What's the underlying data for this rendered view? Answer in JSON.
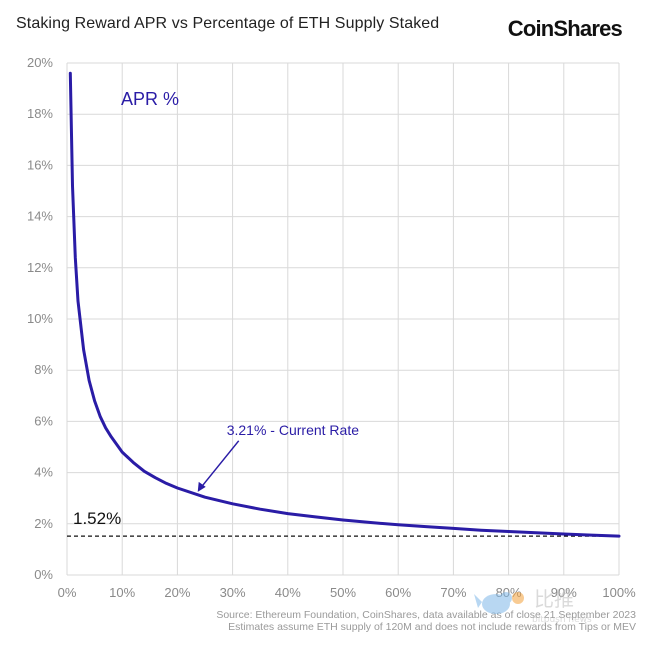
{
  "header": {
    "title": "Staking Reward APR vs Percentage of ETH Supply Staked",
    "logo_text": "CoinShares"
  },
  "chart_data": {
    "type": "line",
    "title": "Staking Reward APR vs Percentage of ETH Supply Staked",
    "xlabel": "",
    "ylabel": "",
    "xlim": [
      0,
      100
    ],
    "ylim": [
      0,
      20
    ],
    "x_ticks": [
      0,
      10,
      20,
      30,
      40,
      50,
      60,
      70,
      80,
      90,
      100
    ],
    "x_tick_labels": [
      "0%",
      "10%",
      "20%",
      "30%",
      "40%",
      "50%",
      "60%",
      "70%",
      "80%",
      "90%",
      "100%"
    ],
    "y_ticks": [
      0,
      2,
      4,
      6,
      8,
      10,
      12,
      14,
      16,
      18,
      20
    ],
    "y_tick_labels": [
      "0%",
      "2%",
      "4%",
      "6%",
      "8%",
      "10%",
      "12%",
      "14%",
      "16%",
      "18%",
      "20%"
    ],
    "grid": true,
    "series": [
      {
        "name": "APR %",
        "color": "#2a1ca6",
        "x": [
          0.6,
          1,
          1.5,
          2,
          3,
          4,
          5,
          6,
          7,
          8,
          10,
          12,
          14,
          16,
          18,
          20,
          25,
          30,
          35,
          40,
          45,
          50,
          55,
          60,
          65,
          70,
          75,
          80,
          85,
          90,
          95,
          100
        ],
        "y": [
          19.6,
          15.2,
          12.4,
          10.7,
          8.8,
          7.6,
          6.8,
          6.2,
          5.75,
          5.4,
          4.8,
          4.4,
          4.05,
          3.8,
          3.58,
          3.4,
          3.04,
          2.78,
          2.57,
          2.4,
          2.27,
          2.15,
          2.05,
          1.96,
          1.89,
          1.82,
          1.75,
          1.7,
          1.65,
          1.6,
          1.56,
          1.52
        ]
      }
    ],
    "reference_line": {
      "value": 1.52,
      "label": "1.52%",
      "style": "dashed",
      "color": "#111111"
    },
    "annotation": {
      "text": "3.21% - Current Rate",
      "x": 23.5,
      "y": 3.21,
      "color": "#2a1ca6"
    },
    "legend": {
      "placement": "top-left"
    }
  },
  "source_lines": [
    "Source: Ethereum Foundation, CoinShares, data available as of close 21 September 2023",
    "Estimates assume ETH supply of 120M and does not include rewards from Tips or MEV"
  ],
  "watermark": {
    "text": "比推",
    "subtext": "bitpush news"
  }
}
